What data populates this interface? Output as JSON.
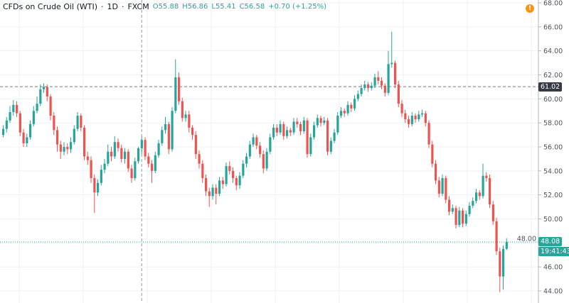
{
  "header": {
    "symbol": "CFDs on Crude Oil (WTI)",
    "interval": "1D",
    "exchange": "FXCM",
    "sep": "·",
    "open": "O55.88",
    "high": "H56.86",
    "low": "L55.41",
    "close": "C56.58",
    "change": "+0.70 (+1.25%)"
  },
  "alert_icon": "!",
  "crosshair_price": "61.02",
  "last_price": "48.08",
  "countdown": "19:41:43",
  "colors": {
    "up": "#26a69a",
    "down": "#ef5350",
    "alert": "#f7931a",
    "crosshair_label": "#363a45"
  },
  "chart_data": {
    "type": "candlestick",
    "title": "CFDs on Crude Oil (WTI) · 1D · FXCM",
    "ylim": [
      44,
      68
    ],
    "yticks": [
      "44.00",
      "46.00",
      "48.00",
      "50.00",
      "52.00",
      "54.00",
      "56.00",
      "58.00",
      "60.00",
      "62.00",
      "64.00",
      "66.00",
      "68.00"
    ],
    "grid": true,
    "last_price": 48.08,
    "crosshair_price": 61.02,
    "crosshair_candle": 41,
    "ohlc": [
      [
        57.0,
        57.8,
        56.8,
        57.5
      ],
      [
        57.5,
        58.5,
        57.2,
        58.2
      ],
      [
        58.2,
        59.4,
        58.0,
        58.9
      ],
      [
        58.9,
        59.9,
        58.6,
        59.5
      ],
      [
        59.5,
        59.8,
        58.5,
        58.8
      ],
      [
        58.8,
        59.0,
        56.9,
        57.2
      ],
      [
        57.2,
        57.5,
        56.0,
        56.3
      ],
      [
        56.3,
        57.1,
        56.0,
        56.8
      ],
      [
        56.8,
        58.2,
        56.6,
        57.9
      ],
      [
        57.9,
        59.4,
        57.7,
        59.0
      ],
      [
        59.0,
        60.2,
        58.8,
        59.6
      ],
      [
        59.6,
        61.2,
        59.4,
        60.8
      ],
      [
        60.8,
        61.3,
        60.5,
        61.0
      ],
      [
        61.0,
        61.2,
        59.8,
        60.2
      ],
      [
        60.2,
        60.4,
        58.2,
        58.6
      ],
      [
        58.6,
        58.9,
        57.0,
        57.4
      ],
      [
        57.4,
        57.7,
        55.6,
        56.2
      ],
      [
        56.2,
        56.5,
        55.0,
        55.6
      ],
      [
        55.6,
        56.4,
        55.3,
        56.0
      ],
      [
        56.0,
        56.3,
        55.4,
        55.8
      ],
      [
        55.8,
        56.8,
        55.5,
        56.4
      ],
      [
        56.4,
        57.8,
        56.2,
        57.5
      ],
      [
        57.5,
        58.9,
        57.3,
        58.6
      ],
      [
        58.6,
        58.8,
        57.3,
        57.6
      ],
      [
        57.6,
        57.8,
        54.9,
        55.2
      ],
      [
        55.2,
        55.6,
        54.5,
        54.9
      ],
      [
        54.9,
        55.2,
        53.0,
        53.4
      ],
      [
        53.4,
        53.7,
        50.5,
        52.2
      ],
      [
        52.2,
        53.3,
        51.9,
        53.0
      ],
      [
        53.0,
        54.5,
        52.8,
        54.1
      ],
      [
        54.1,
        55.0,
        53.8,
        54.6
      ],
      [
        54.6,
        56.2,
        54.4,
        55.6
      ],
      [
        55.6,
        56.0,
        54.8,
        55.2
      ],
      [
        55.2,
        56.9,
        55.0,
        56.4
      ],
      [
        56.4,
        56.7,
        55.6,
        55.9
      ],
      [
        55.9,
        56.2,
        54.7,
        55.0
      ],
      [
        55.0,
        55.9,
        54.6,
        55.6
      ],
      [
        55.6,
        55.8,
        53.9,
        54.2
      ],
      [
        54.2,
        54.5,
        53.0,
        53.4
      ],
      [
        53.4,
        55.1,
        53.2,
        54.8
      ],
      [
        54.8,
        56.0,
        54.6,
        55.88
      ],
      [
        55.88,
        56.86,
        55.41,
        56.58
      ],
      [
        56.58,
        56.8,
        54.9,
        55.2
      ],
      [
        55.2,
        55.5,
        54.3,
        54.6
      ],
      [
        54.6,
        54.9,
        53.0,
        54.0
      ],
      [
        54.0,
        55.6,
        53.8,
        55.3
      ],
      [
        55.3,
        56.6,
        55.1,
        56.3
      ],
      [
        56.3,
        57.7,
        56.1,
        57.4
      ],
      [
        57.4,
        58.5,
        57.1,
        57.9
      ],
      [
        57.9,
        58.1,
        55.4,
        55.8
      ],
      [
        55.8,
        59.3,
        55.6,
        59.0
      ],
      [
        59.0,
        63.3,
        58.8,
        61.8
      ],
      [
        61.8,
        62.2,
        59.5,
        59.8
      ],
      [
        59.8,
        60.1,
        58.1,
        58.4
      ],
      [
        58.4,
        59.0,
        58.1,
        58.7
      ],
      [
        58.7,
        59.0,
        57.2,
        57.6
      ],
      [
        57.6,
        57.8,
        56.6,
        57.0
      ],
      [
        57.0,
        57.3,
        55.0,
        55.4
      ],
      [
        55.4,
        55.7,
        54.2,
        54.6
      ],
      [
        54.6,
        54.9,
        53.0,
        53.4
      ],
      [
        53.4,
        53.7,
        51.9,
        52.3
      ],
      [
        52.3,
        52.6,
        51.0,
        51.9
      ],
      [
        51.9,
        52.9,
        51.6,
        52.6
      ],
      [
        52.6,
        52.9,
        51.2,
        52.1
      ],
      [
        52.1,
        53.5,
        51.9,
        53.2
      ],
      [
        53.2,
        53.5,
        52.5,
        52.9
      ],
      [
        52.9,
        54.7,
        52.7,
        54.4
      ],
      [
        54.4,
        54.8,
        53.7,
        54.0
      ],
      [
        54.0,
        54.3,
        53.0,
        53.4
      ],
      [
        53.4,
        53.6,
        52.4,
        52.8
      ],
      [
        52.8,
        53.9,
        52.5,
        53.6
      ],
      [
        53.6,
        54.9,
        53.4,
        54.6
      ],
      [
        54.6,
        55.5,
        54.3,
        55.2
      ],
      [
        55.2,
        56.5,
        55.0,
        56.2
      ],
      [
        56.2,
        57.1,
        56.0,
        56.8
      ],
      [
        56.8,
        57.0,
        55.8,
        56.1
      ],
      [
        56.1,
        56.4,
        55.1,
        55.4
      ],
      [
        55.4,
        55.7,
        53.8,
        54.2
      ],
      [
        54.2,
        55.9,
        54.0,
        55.6
      ],
      [
        55.6,
        57.1,
        55.4,
        56.8
      ],
      [
        56.8,
        57.9,
        56.6,
        57.6
      ],
      [
        57.6,
        57.9,
        56.9,
        57.2
      ],
      [
        57.2,
        58.2,
        57.0,
        57.9
      ],
      [
        57.9,
        58.1,
        56.6,
        56.9
      ],
      [
        56.9,
        57.7,
        56.7,
        57.4
      ],
      [
        57.4,
        57.6,
        56.9,
        57.2
      ],
      [
        57.2,
        58.4,
        57.0,
        58.1
      ],
      [
        58.1,
        58.4,
        57.6,
        57.9
      ],
      [
        57.9,
        58.1,
        57.0,
        57.3
      ],
      [
        57.3,
        58.5,
        57.1,
        58.2
      ],
      [
        58.2,
        58.4,
        55.1,
        55.4
      ],
      [
        55.4,
        57.1,
        55.2,
        56.8
      ],
      [
        56.8,
        58.1,
        56.6,
        57.8
      ],
      [
        57.8,
        58.7,
        57.6,
        58.4
      ],
      [
        58.4,
        58.6,
        57.7,
        58.0
      ],
      [
        58.0,
        58.5,
        57.8,
        58.2
      ],
      [
        58.2,
        58.4,
        55.3,
        55.6
      ],
      [
        55.6,
        56.8,
        55.4,
        56.5
      ],
      [
        56.5,
        57.5,
        56.3,
        57.2
      ],
      [
        57.2,
        58.9,
        57.0,
        58.6
      ],
      [
        58.6,
        59.3,
        58.4,
        59.0
      ],
      [
        59.0,
        59.2,
        58.5,
        58.8
      ],
      [
        58.8,
        59.8,
        58.6,
        59.5
      ],
      [
        59.5,
        59.7,
        58.9,
        59.2
      ],
      [
        59.2,
        60.3,
        59.0,
        60.0
      ],
      [
        60.0,
        60.7,
        59.8,
        60.4
      ],
      [
        60.4,
        61.2,
        60.2,
        60.9
      ],
      [
        60.9,
        61.5,
        60.7,
        61.2
      ],
      [
        61.2,
        61.4,
        60.6,
        60.9
      ],
      [
        60.9,
        61.4,
        60.7,
        61.1
      ],
      [
        61.1,
        62.1,
        60.9,
        61.8
      ],
      [
        61.8,
        62.3,
        61.2,
        61.5
      ],
      [
        61.5,
        61.8,
        60.8,
        61.1
      ],
      [
        61.1,
        61.3,
        60.2,
        60.5
      ],
      [
        60.5,
        64.0,
        60.3,
        62.9
      ],
      [
        62.9,
        65.6,
        62.6,
        63.0
      ],
      [
        63.0,
        63.2,
        60.9,
        61.2
      ],
      [
        61.2,
        61.5,
        59.3,
        59.6
      ],
      [
        59.6,
        59.9,
        58.5,
        58.8
      ],
      [
        58.8,
        59.1,
        58.0,
        58.3
      ],
      [
        58.3,
        58.6,
        57.6,
        57.9
      ],
      [
        57.9,
        58.9,
        57.7,
        58.6
      ],
      [
        58.6,
        58.8,
        58.0,
        58.3
      ],
      [
        58.3,
        59.0,
        58.1,
        58.7
      ],
      [
        58.7,
        59.1,
        58.5,
        58.8
      ],
      [
        58.8,
        59.0,
        57.7,
        58.0
      ],
      [
        58.0,
        58.2,
        55.9,
        56.2
      ],
      [
        56.2,
        56.5,
        54.3,
        54.6
      ],
      [
        54.6,
        54.9,
        52.9,
        53.2
      ],
      [
        53.2,
        53.5,
        51.8,
        52.1
      ],
      [
        52.1,
        53.7,
        51.9,
        53.4
      ],
      [
        53.4,
        53.6,
        51.3,
        51.6
      ],
      [
        51.6,
        51.9,
        50.3,
        50.6
      ],
      [
        50.6,
        51.2,
        50.4,
        50.9
      ],
      [
        50.9,
        51.1,
        49.2,
        49.5
      ],
      [
        49.5,
        51.0,
        49.3,
        50.7
      ],
      [
        50.7,
        50.9,
        49.3,
        49.6
      ],
      [
        49.6,
        50.7,
        49.4,
        50.4
      ],
      [
        50.4,
        51.4,
        50.2,
        51.1
      ],
      [
        51.1,
        51.8,
        50.9,
        51.5
      ],
      [
        51.5,
        52.5,
        51.3,
        52.2
      ],
      [
        52.2,
        52.4,
        51.6,
        51.9
      ],
      [
        51.9,
        54.6,
        51.7,
        53.6
      ],
      [
        53.6,
        53.9,
        53.1,
        53.4
      ],
      [
        53.4,
        53.7,
        50.9,
        51.2
      ],
      [
        51.2,
        51.5,
        49.5,
        49.8
      ],
      [
        49.8,
        50.1,
        47.0,
        47.3
      ],
      [
        47.3,
        47.6,
        43.9,
        45.2
      ],
      [
        45.2,
        47.8,
        44.1,
        47.5
      ],
      [
        47.5,
        48.4,
        47.4,
        48.08
      ]
    ]
  }
}
